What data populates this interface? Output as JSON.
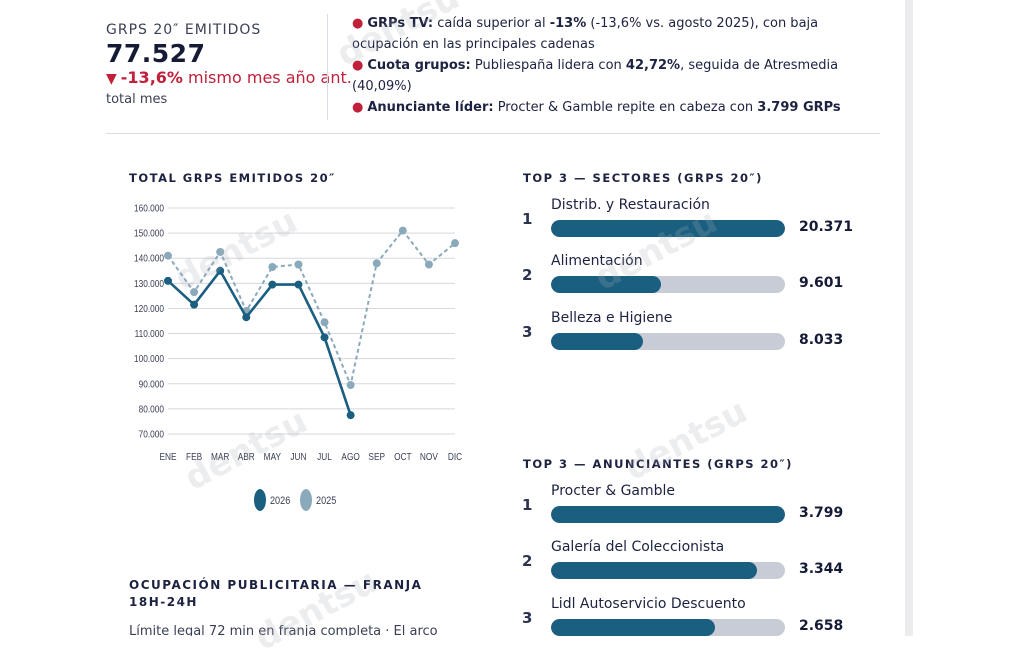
{
  "kpi": {
    "label": "GRPS 20″ EMITIDOS",
    "value": "77.527",
    "change_icon": "down-triangle",
    "change_symbol": "▼",
    "change_value": "-13,6%",
    "change_text": " mismo mes año ant.",
    "sub": "total mes"
  },
  "highlights": [
    {
      "bullet": "●",
      "lead": "GRPs TV:",
      "text1": " caída superior al ",
      "bold": "-13%",
      "text2": " (-13,6% vs. agosto 2025), con baja ocupación en las principales cadenas"
    },
    {
      "bullet": "●",
      "lead": "Cuota grupos:",
      "text1": " Publiespaña lidera con ",
      "bold": "42,72%",
      "text2": ", seguida de Atresmedia (40,09%)"
    },
    {
      "bullet": "●",
      "lead": "Anunciante líder:",
      "text1": " Procter & Gamble repite en cabeza con ",
      "bold": "3.799 GRPs",
      "text2": ""
    }
  ],
  "chart_section": {
    "title": "TOTAL GRPS EMITIDOS 20″"
  },
  "sectors": {
    "title": "TOP 3 — SECTORES (GRPS 20″)",
    "items": [
      {
        "rank": "1",
        "label": "Distrib. y Restauración",
        "value": "20.371",
        "fill": 1.0
      },
      {
        "rank": "2",
        "label": "Alimentación",
        "value": "9.601",
        "fill": 0.471
      },
      {
        "rank": "3",
        "label": "Belleza e Higiene",
        "value": "8.033",
        "fill": 0.394
      }
    ]
  },
  "advertisers": {
    "title": "TOP 3 — ANUNCIANTES (GRPS 20″)",
    "items": [
      {
        "rank": "1",
        "label": "Procter & Gamble",
        "value": "3.799",
        "fill": 1.0
      },
      {
        "rank": "2",
        "label": "Galería del Coleccionista",
        "value": "3.344",
        "fill": 0.88
      },
      {
        "rank": "3",
        "label": "Lidl Autoservicio Descuento",
        "value": "2.658",
        "fill": 0.7
      }
    ]
  },
  "occupancy": {
    "title": "OCUPACIÓN PUBLICITARIA — FRANJA 18H-24H",
    "sub": "Límite legal 72 min en franja completa · El arco"
  },
  "watermark": "dentsu",
  "colors": {
    "series_2026": "#1a5f80",
    "series_2025": "#8aaabb",
    "accent": "#c0203a",
    "track": "#c7ccd6"
  },
  "chart_data": {
    "type": "line",
    "categories": [
      "ENE",
      "FEB",
      "MAR",
      "ABR",
      "MAY",
      "JUN",
      "JUL",
      "AGO",
      "SEP",
      "OCT",
      "NOV",
      "DIC"
    ],
    "series": [
      {
        "name": "2026",
        "values": [
          131000,
          121500,
          135000,
          116500,
          129500,
          129500,
          108500,
          77500,
          null,
          null,
          null,
          null
        ],
        "style": "solid",
        "color": "#1a5f80"
      },
      {
        "name": "2025",
        "values": [
          141000,
          126500,
          142500,
          119000,
          136500,
          137500,
          114500,
          89500,
          138000,
          151000,
          137500,
          146000
        ],
        "style": "dashed",
        "color": "#8aaabb"
      }
    ],
    "yticks": [
      "160.000",
      "150.000",
      "140.000",
      "130.000",
      "120.000",
      "110.000",
      "100.000",
      "90.000",
      "80.000",
      "70.000"
    ],
    "ylim": [
      70000,
      160000
    ],
    "grid": true,
    "legend": "bottom-center"
  }
}
